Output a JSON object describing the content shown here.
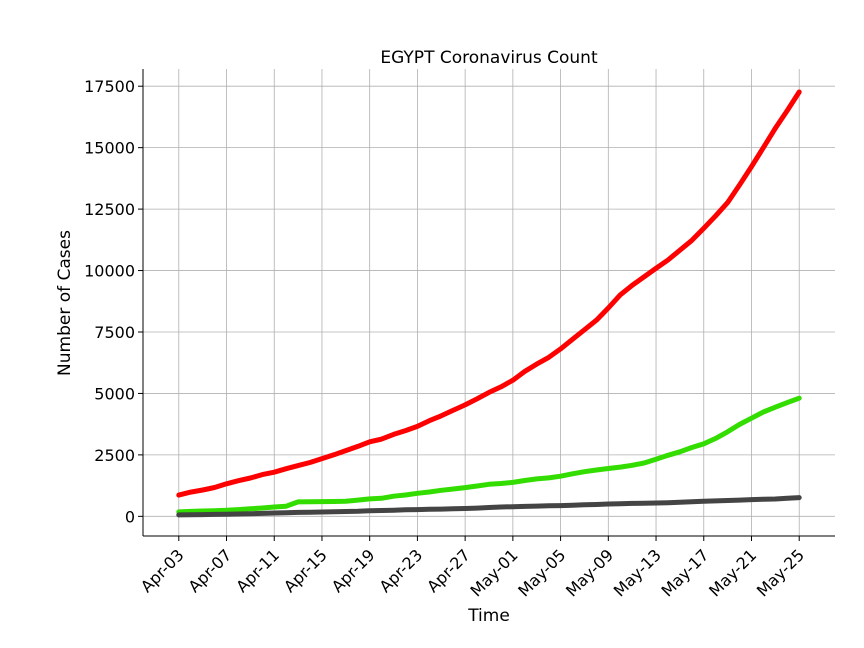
{
  "chart_data": {
    "type": "line",
    "title": "EGYPT Coronavirus Count",
    "xlabel": "Time",
    "ylabel": "Number of Cases",
    "x_tick_labels": [
      "Apr-03",
      "Apr-07",
      "Apr-11",
      "Apr-15",
      "Apr-19",
      "Apr-23",
      "Apr-27",
      "May-01",
      "May-05",
      "May-09",
      "May-13",
      "May-17",
      "May-21",
      "May-25"
    ],
    "y_ticks": [
      0,
      2500,
      5000,
      7500,
      10000,
      12500,
      15000,
      17500
    ],
    "y_tick_labels": [
      "0",
      "2500",
      "5000",
      "7500",
      "10000",
      "12500",
      "15000",
      "17500"
    ],
    "ylim": [
      -800,
      18200
    ],
    "xlim": [
      "2020-04-00",
      "2020-05-28"
    ],
    "grid": true,
    "series": [
      {
        "color": "#ff0000",
        "points": [
          [
            "2020-04-03",
            865
          ],
          [
            "2020-04-04",
            985
          ],
          [
            "2020-04-05",
            1070
          ],
          [
            "2020-04-06",
            1173
          ],
          [
            "2020-04-07",
            1322
          ],
          [
            "2020-04-08",
            1450
          ],
          [
            "2020-04-09",
            1560
          ],
          [
            "2020-04-10",
            1699
          ],
          [
            "2020-04-11",
            1794
          ],
          [
            "2020-04-12",
            1939
          ],
          [
            "2020-04-13",
            2065
          ],
          [
            "2020-04-14",
            2190
          ],
          [
            "2020-04-15",
            2350
          ],
          [
            "2020-04-16",
            2505
          ],
          [
            "2020-04-17",
            2673
          ],
          [
            "2020-04-18",
            2844
          ],
          [
            "2020-04-19",
            3032
          ],
          [
            "2020-04-20",
            3144
          ],
          [
            "2020-04-21",
            3333
          ],
          [
            "2020-04-22",
            3490
          ],
          [
            "2020-04-23",
            3659
          ],
          [
            "2020-04-24",
            3891
          ],
          [
            "2020-04-25",
            4092
          ],
          [
            "2020-04-26",
            4319
          ],
          [
            "2020-04-27",
            4534
          ],
          [
            "2020-04-28",
            4782
          ],
          [
            "2020-04-29",
            5042
          ],
          [
            "2020-04-30",
            5268
          ],
          [
            "2020-05-01",
            5537
          ],
          [
            "2020-05-02",
            5895
          ],
          [
            "2020-05-03",
            6193
          ],
          [
            "2020-05-04",
            6465
          ],
          [
            "2020-05-05",
            6813
          ],
          [
            "2020-05-06",
            7201
          ],
          [
            "2020-05-07",
            7588
          ],
          [
            "2020-05-08",
            7981
          ],
          [
            "2020-05-09",
            8476
          ],
          [
            "2020-05-10",
            9009
          ],
          [
            "2020-05-11",
            9400
          ],
          [
            "2020-05-12",
            9746
          ],
          [
            "2020-05-13",
            10093
          ],
          [
            "2020-05-14",
            10431
          ],
          [
            "2020-05-15",
            10829
          ],
          [
            "2020-05-16",
            11228
          ],
          [
            "2020-05-17",
            11719
          ],
          [
            "2020-05-18",
            12229
          ],
          [
            "2020-05-19",
            12764
          ],
          [
            "2020-05-20",
            13484
          ],
          [
            "2020-05-21",
            14229
          ],
          [
            "2020-05-22",
            15003
          ],
          [
            "2020-05-23",
            15786
          ],
          [
            "2020-05-24",
            16513
          ],
          [
            "2020-05-25",
            17265
          ]
        ]
      },
      {
        "color": "#33dd00",
        "points": [
          [
            "2020-04-03",
            179
          ],
          [
            "2020-04-04",
            201
          ],
          [
            "2020-04-05",
            216
          ],
          [
            "2020-04-06",
            229
          ],
          [
            "2020-04-07",
            247
          ],
          [
            "2020-04-08",
            276
          ],
          [
            "2020-04-09",
            305
          ],
          [
            "2020-04-10",
            339
          ],
          [
            "2020-04-11",
            380
          ],
          [
            "2020-04-12",
            411
          ],
          [
            "2020-04-13",
            589
          ],
          [
            "2020-04-14",
            596
          ],
          [
            "2020-04-15",
            600
          ],
          [
            "2020-04-16",
            604
          ],
          [
            "2020-04-17",
            616
          ],
          [
            "2020-04-18",
            660
          ],
          [
            "2020-04-19",
            709
          ],
          [
            "2020-04-20",
            732
          ],
          [
            "2020-04-21",
            821
          ],
          [
            "2020-04-22",
            870
          ],
          [
            "2020-04-23",
            936
          ],
          [
            "2020-04-24",
            992
          ],
          [
            "2020-04-25",
            1059
          ],
          [
            "2020-04-26",
            1114
          ],
          [
            "2020-04-27",
            1168
          ],
          [
            "2020-04-28",
            1236
          ],
          [
            "2020-04-29",
            1304
          ],
          [
            "2020-04-30",
            1335
          ],
          [
            "2020-05-01",
            1381
          ],
          [
            "2020-05-02",
            1460
          ],
          [
            "2020-05-03",
            1522
          ],
          [
            "2020-05-04",
            1562
          ],
          [
            "2020-05-05",
            1632
          ],
          [
            "2020-05-06",
            1730
          ],
          [
            "2020-05-07",
            1815
          ],
          [
            "2020-05-08",
            1887
          ],
          [
            "2020-05-09",
            1945
          ],
          [
            "2020-05-10",
            2002
          ],
          [
            "2020-05-11",
            2075
          ],
          [
            "2020-05-12",
            2172
          ],
          [
            "2020-05-13",
            2326
          ],
          [
            "2020-05-14",
            2485
          ],
          [
            "2020-05-15",
            2626
          ],
          [
            "2020-05-16",
            2799
          ],
          [
            "2020-05-17",
            2950
          ],
          [
            "2020-05-18",
            3172
          ],
          [
            "2020-05-19",
            3440
          ],
          [
            "2020-05-20",
            3742
          ],
          [
            "2020-05-21",
            3994
          ],
          [
            "2020-05-22",
            4244
          ],
          [
            "2020-05-23",
            4442
          ],
          [
            "2020-05-24",
            4626
          ],
          [
            "2020-05-25",
            4807
          ]
        ]
      },
      {
        "color": "#444444",
        "points": [
          [
            "2020-04-03",
            58
          ],
          [
            "2020-04-04",
            66
          ],
          [
            "2020-04-05",
            71
          ],
          [
            "2020-04-06",
            78
          ],
          [
            "2020-04-07",
            85
          ],
          [
            "2020-04-08",
            94
          ],
          [
            "2020-04-09",
            103
          ],
          [
            "2020-04-10",
            118
          ],
          [
            "2020-04-11",
            135
          ],
          [
            "2020-04-12",
            146
          ],
          [
            "2020-04-13",
            159
          ],
          [
            "2020-04-14",
            164
          ],
          [
            "2020-04-15",
            178
          ],
          [
            "2020-04-16",
            183
          ],
          [
            "2020-04-17",
            196
          ],
          [
            "2020-04-18",
            205
          ],
          [
            "2020-04-19",
            224
          ],
          [
            "2020-04-20",
            239
          ],
          [
            "2020-04-21",
            250
          ],
          [
            "2020-04-22",
            264
          ],
          [
            "2020-04-23",
            276
          ],
          [
            "2020-04-24",
            287
          ],
          [
            "2020-04-25",
            294
          ],
          [
            "2020-04-26",
            307
          ],
          [
            "2020-04-27",
            317
          ],
          [
            "2020-04-28",
            337
          ],
          [
            "2020-04-29",
            359
          ],
          [
            "2020-04-30",
            380
          ],
          [
            "2020-05-01",
            392
          ],
          [
            "2020-05-02",
            406
          ],
          [
            "2020-05-03",
            415
          ],
          [
            "2020-05-04",
            429
          ],
          [
            "2020-05-05",
            436
          ],
          [
            "2020-05-06",
            452
          ],
          [
            "2020-05-07",
            469
          ],
          [
            "2020-05-08",
            482
          ],
          [
            "2020-05-09",
            503
          ],
          [
            "2020-05-10",
            514
          ],
          [
            "2020-05-11",
            525
          ],
          [
            "2020-05-12",
            533
          ],
          [
            "2020-05-13",
            544
          ],
          [
            "2020-05-14",
            556
          ],
          [
            "2020-05-15",
            571
          ],
          [
            "2020-05-16",
            592
          ],
          [
            "2020-05-17",
            612
          ],
          [
            "2020-05-18",
            630
          ],
          [
            "2020-05-19",
            645
          ],
          [
            "2020-05-20",
            659
          ],
          [
            "2020-05-21",
            680
          ],
          [
            "2020-05-22",
            696
          ],
          [
            "2020-05-23",
            707
          ],
          [
            "2020-05-24",
            735
          ],
          [
            "2020-05-25",
            764
          ]
        ]
      }
    ]
  }
}
